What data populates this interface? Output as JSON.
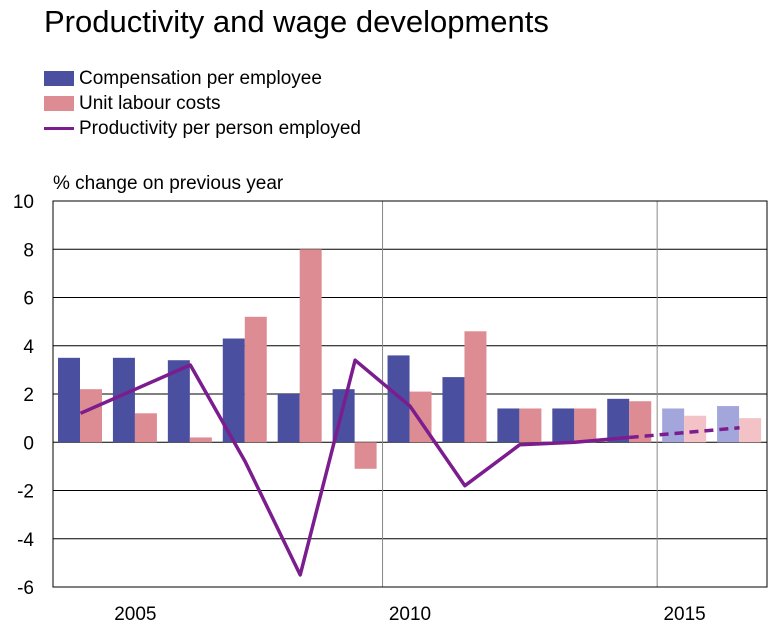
{
  "chart_data": {
    "type": "bar",
    "title": "Productivity and wage developments",
    "ylabel": "% change on previous year",
    "ylim": [
      -6,
      10
    ],
    "yticks": [
      10,
      8,
      6,
      4,
      2,
      0,
      -2,
      -4,
      -6
    ],
    "x": [
      2004,
      2005,
      2006,
      2007,
      2008,
      2009,
      2010,
      2011,
      2012,
      2013,
      2014,
      2015,
      2016
    ],
    "xtick_labels": [
      "2005",
      "2010",
      "2015"
    ],
    "vertical_gridlines_at": [
      2009,
      2014
    ],
    "projection_from": 2014,
    "series": [
      {
        "name": "Compensation per employee",
        "type": "bar",
        "color": "#4b4fa0",
        "projection_color": "#a3a6db",
        "values": [
          3.5,
          3.5,
          3.4,
          4.3,
          2.0,
          2.2,
          3.6,
          2.7,
          1.4,
          1.4,
          1.8,
          1.4,
          1.5
        ]
      },
      {
        "name": "Unit labour costs",
        "type": "bar",
        "color": "#de8c93",
        "projection_color": "#f2c2c6",
        "values": [
          2.2,
          1.2,
          0.2,
          5.2,
          8.0,
          -1.1,
          2.1,
          4.6,
          1.4,
          1.4,
          1.7,
          1.1,
          1.0
        ]
      },
      {
        "name": "Productivity per person employed",
        "type": "line",
        "color": "#7b1d8e",
        "values": [
          1.2,
          2.2,
          3.2,
          -0.8,
          -5.5,
          3.4,
          1.5,
          -1.8,
          -0.1,
          0.0,
          0.2,
          0.4,
          0.6
        ]
      }
    ],
    "grid": "horizontal and selected vertical"
  }
}
